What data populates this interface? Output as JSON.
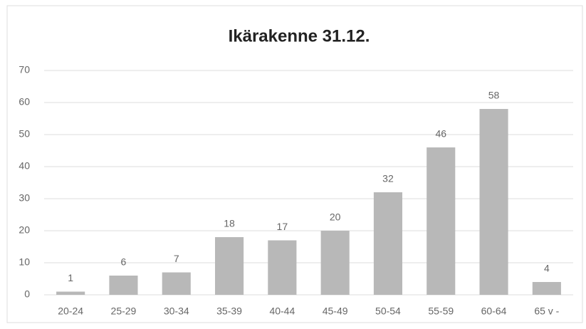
{
  "chart_data": {
    "type": "bar",
    "title": "Ikärakenne 31.12.",
    "categories": [
      "20-24",
      "25-29",
      "30-34",
      "35-39",
      "40-44",
      "45-49",
      "50-54",
      "55-59",
      "60-64",
      "65 v -"
    ],
    "values": [
      1,
      6,
      7,
      18,
      17,
      20,
      32,
      46,
      58,
      4
    ],
    "color": "#b8b8b8",
    "ylim": [
      0,
      70
    ],
    "yticks": [
      0,
      10,
      20,
      30,
      40,
      50,
      60,
      70
    ],
    "grid": true
  }
}
